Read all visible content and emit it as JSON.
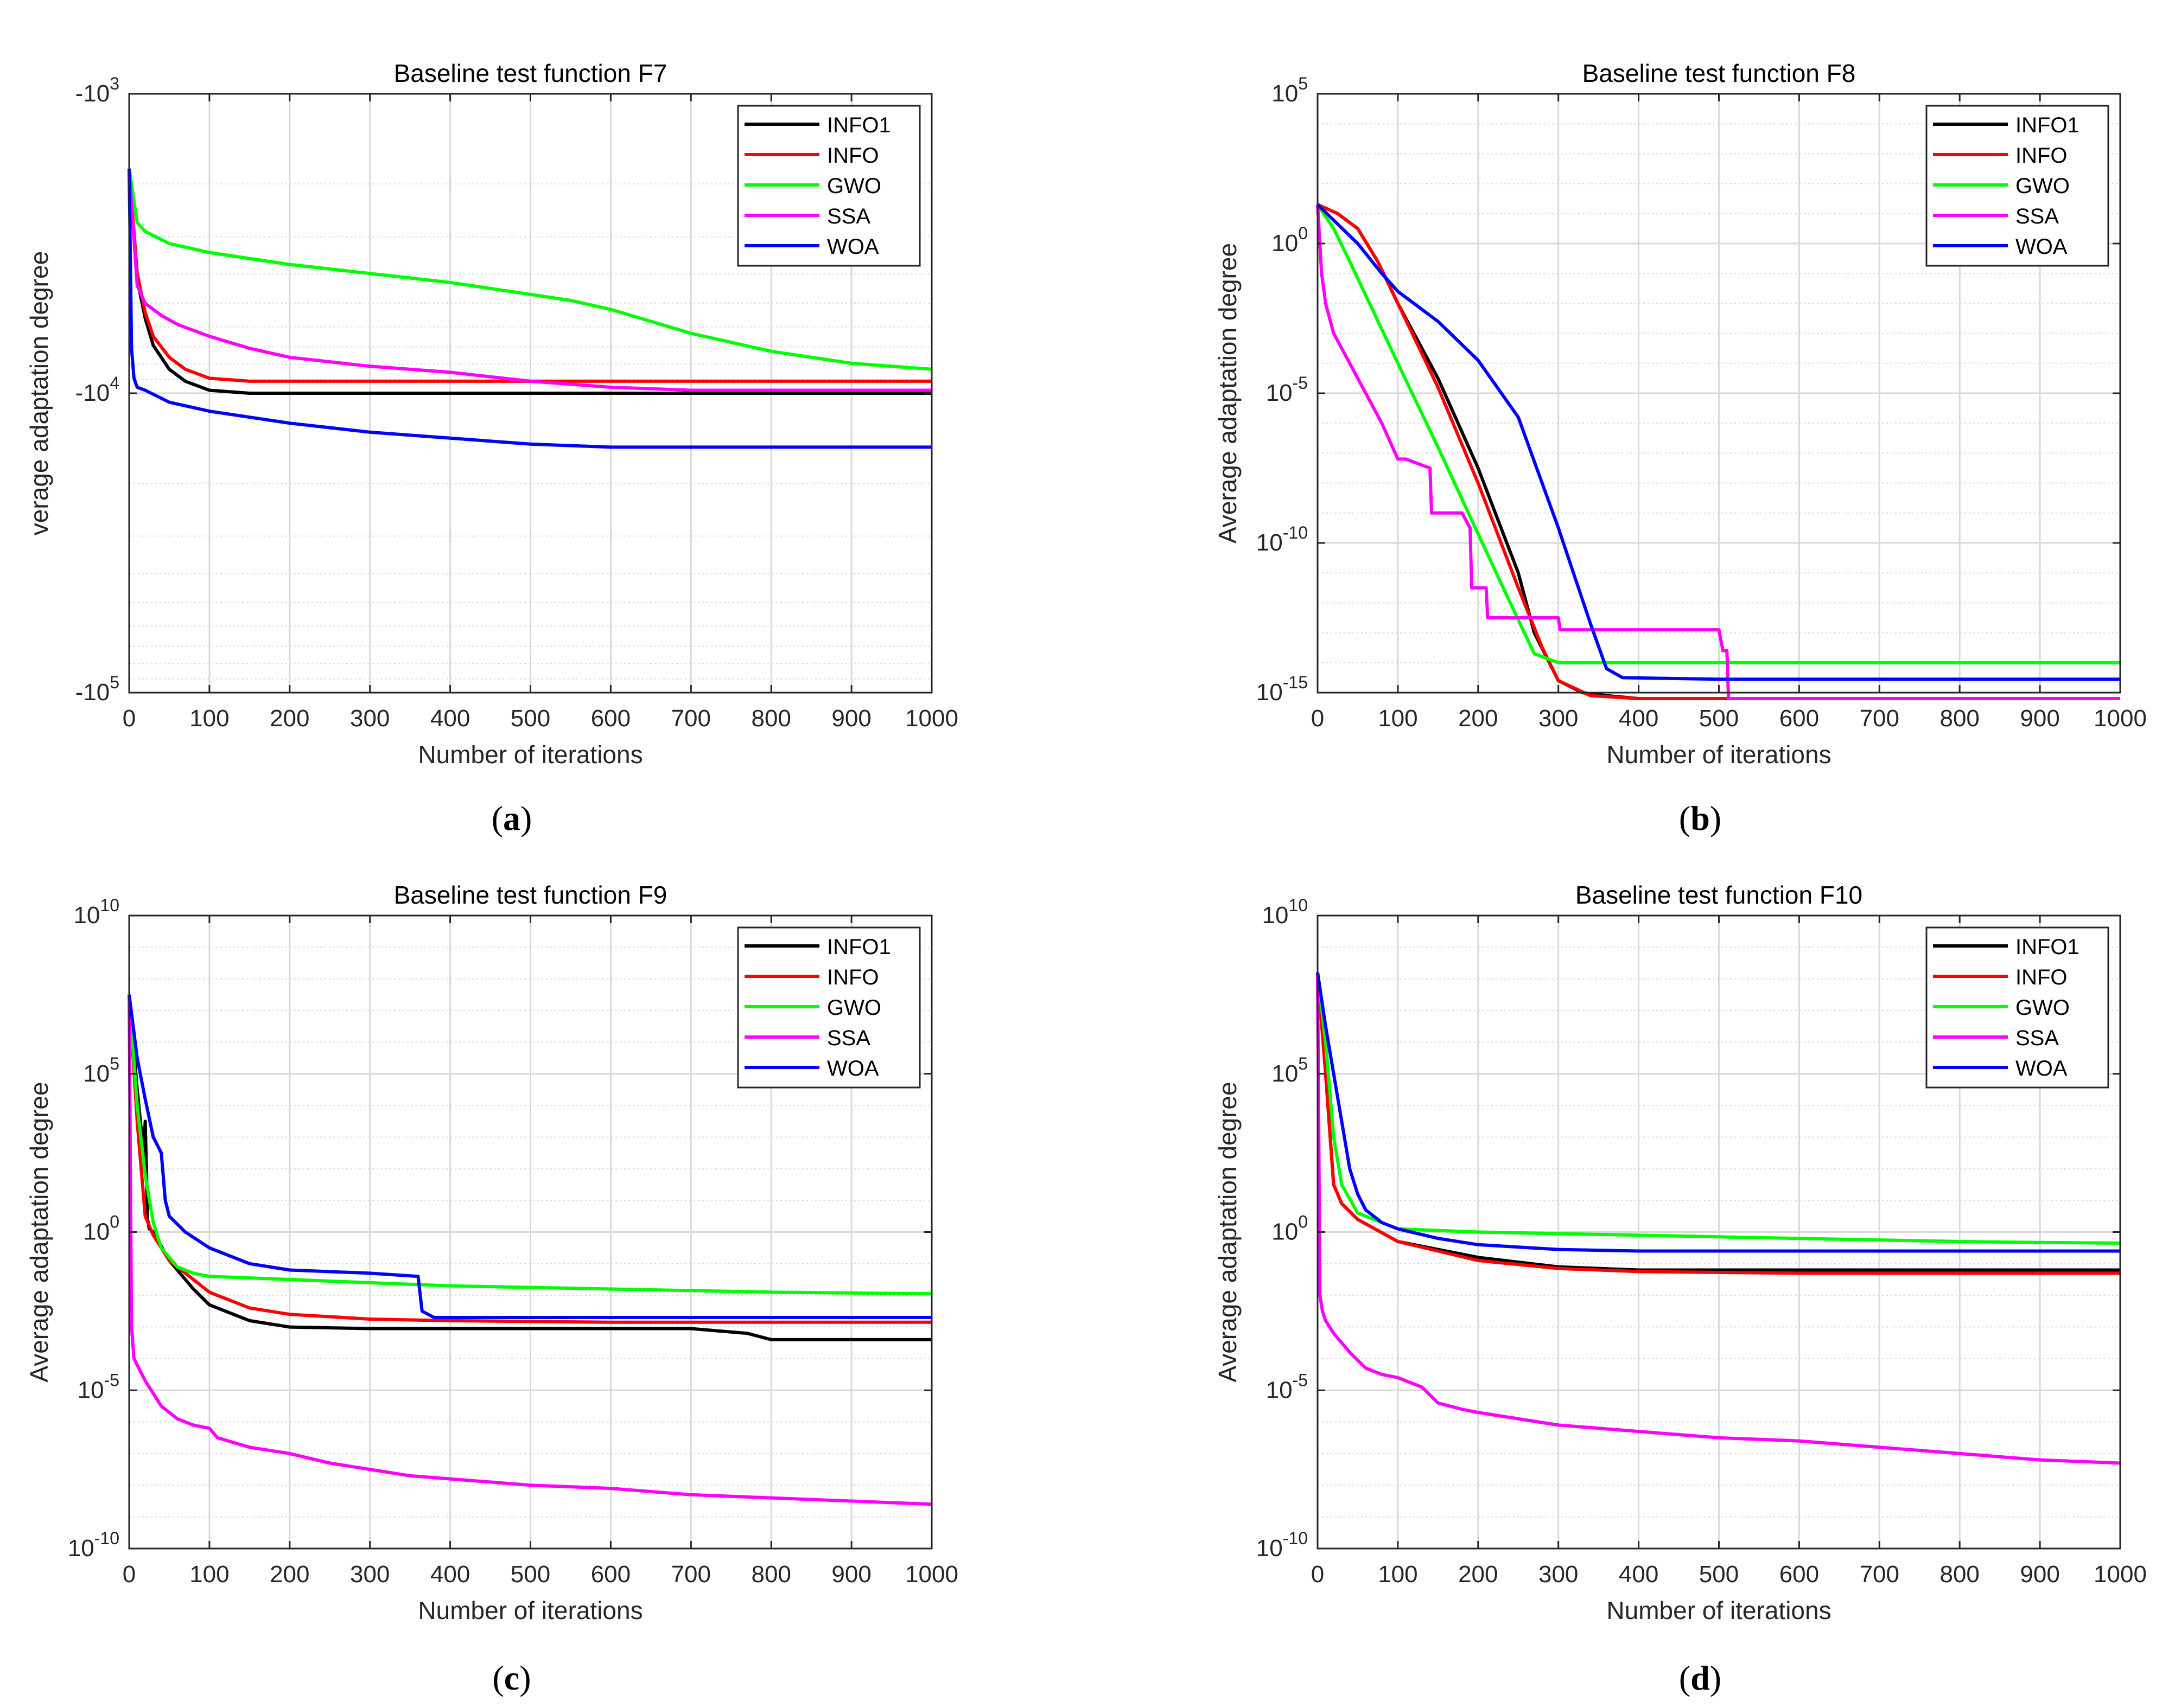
{
  "colors": {
    "INFO1": "#000000",
    "INFO": "#ff0000",
    "GWO": "#00ff00",
    "SSA": "#ff00ff",
    "WOA": "#0000ff",
    "grid": "#d9d9d9",
    "axis": "#262626"
  },
  "chart_data": [
    {
      "type": "line",
      "panel": "a",
      "caption": "(a)",
      "title": "Baseline test function F7",
      "xlabel": "Number of iterations",
      "ylabel": "verage adaptation degree",
      "yscale": "log-negative",
      "xlim": [
        0,
        1000
      ],
      "ylim": [
        -1000,
        -100000
      ],
      "xticks": [
        0,
        100,
        200,
        300,
        400,
        500,
        600,
        700,
        800,
        900,
        1000
      ],
      "xtick_labels": [
        "0",
        "100",
        "200",
        "300",
        "400",
        "500",
        "600",
        "700",
        "800",
        "900",
        "1000"
      ],
      "yticks": [
        3,
        4,
        5
      ],
      "ytick_labels": [
        {
          "base": "-10",
          "exp": "3"
        },
        {
          "base": "-10",
          "exp": "4"
        },
        {
          "base": "-10",
          "exp": "5"
        }
      ],
      "legend_position": "top-right",
      "series": [
        {
          "name": "INFO1",
          "x": [
            0,
            10,
            20,
            30,
            50,
            70,
            100,
            150,
            200,
            300,
            500,
            700,
            1000
          ],
          "y": [
            3.25,
            3.62,
            3.75,
            3.84,
            3.92,
            3.96,
            3.99,
            4.0,
            4.0,
            4.0,
            4.0,
            4.0,
            4.0
          ]
        },
        {
          "name": "INFO",
          "x": [
            0,
            10,
            20,
            30,
            50,
            70,
            100,
            150,
            200,
            300,
            500,
            700,
            1000
          ],
          "y": [
            3.25,
            3.6,
            3.73,
            3.81,
            3.88,
            3.92,
            3.95,
            3.96,
            3.96,
            3.96,
            3.96,
            3.96,
            3.96
          ]
        },
        {
          "name": "GWO",
          "x": [
            0,
            10,
            20,
            50,
            100,
            200,
            300,
            400,
            500,
            550,
            600,
            700,
            800,
            900,
            1000
          ],
          "y": [
            3.25,
            3.43,
            3.46,
            3.5,
            3.53,
            3.57,
            3.6,
            3.63,
            3.67,
            3.69,
            3.72,
            3.8,
            3.86,
            3.9,
            3.92
          ]
        },
        {
          "name": "SSA",
          "x": [
            0,
            10,
            20,
            40,
            60,
            100,
            150,
            200,
            300,
            400,
            500,
            600,
            700,
            800,
            900,
            1000
          ],
          "y": [
            3.25,
            3.64,
            3.7,
            3.74,
            3.77,
            3.81,
            3.85,
            3.88,
            3.91,
            3.93,
            3.96,
            3.98,
            3.99,
            3.99,
            3.99,
            3.99
          ]
        },
        {
          "name": "WOA",
          "x": [
            0,
            3,
            6,
            10,
            20,
            50,
            100,
            200,
            300,
            400,
            500,
            600,
            700,
            800,
            900,
            1000
          ],
          "y": [
            3.25,
            3.85,
            3.95,
            3.98,
            3.99,
            4.03,
            4.06,
            4.1,
            4.13,
            4.15,
            4.17,
            4.18,
            4.18,
            4.18,
            4.18,
            4.18
          ]
        }
      ]
    },
    {
      "type": "line",
      "panel": "b",
      "caption": "(b)",
      "title": "Baseline test function F8",
      "xlabel": "Number of iterations",
      "ylabel": "Average adaptation degree",
      "yscale": "log",
      "xlim": [
        0,
        1000
      ],
      "ylim": [
        1e-15,
        100000.0
      ],
      "xticks": [
        0,
        100,
        200,
        300,
        400,
        500,
        600,
        700,
        800,
        900,
        1000
      ],
      "xtick_labels": [
        "0",
        "100",
        "200",
        "300",
        "400",
        "500",
        "600",
        "700",
        "800",
        "900",
        "1000"
      ],
      "yticks": [
        5,
        0,
        -5,
        -10,
        -15
      ],
      "ytick_labels": [
        {
          "base": "10",
          "exp": "5"
        },
        {
          "base": "10",
          "exp": "0"
        },
        {
          "base": "10",
          "exp": "-5"
        },
        {
          "base": "10",
          "exp": "-10"
        },
        {
          "base": "10",
          "exp": "-15"
        }
      ],
      "legend_position": "top-right",
      "series": [
        {
          "name": "INFO1",
          "x": [
            0,
            25,
            50,
            75,
            100,
            150,
            200,
            250,
            270,
            300,
            330,
            360,
            400,
            500,
            700,
            1000
          ],
          "y": [
            1.3,
            1.0,
            0.5,
            -0.6,
            -2,
            -4.5,
            -7.5,
            -11,
            -13,
            -14.6,
            -15,
            -15.1,
            -15.2,
            -15.2,
            -15.2,
            -15.2
          ]
        },
        {
          "name": "INFO",
          "x": [
            0,
            25,
            50,
            75,
            100,
            150,
            200,
            250,
            280,
            300,
            340,
            400,
            500,
            700,
            1000
          ],
          "y": [
            1.3,
            1.0,
            0.5,
            -0.6,
            -2,
            -4.8,
            -8,
            -11.5,
            -13.5,
            -14.6,
            -15.1,
            -15.2,
            -15.2,
            -15.2,
            -15.2
          ]
        },
        {
          "name": "GWO",
          "x": [
            0,
            20,
            40,
            100,
            150,
            200,
            240,
            270,
            300,
            400,
            600,
            800,
            1000
          ],
          "y": [
            1.3,
            0.5,
            -0.6,
            -4,
            -6.8,
            -9.7,
            -12,
            -13.7,
            -14.0,
            -14.0,
            -14.0,
            -14.0,
            -14.0
          ]
        },
        {
          "name": "SSA",
          "x": [
            0,
            5,
            10,
            20,
            40,
            60,
            80,
            100,
            110,
            140,
            142,
            180,
            190,
            192,
            210,
            212,
            260,
            300,
            302,
            400,
            500,
            505,
            510,
            512,
            700,
            1000
          ],
          "y": [
            1.3,
            -1,
            -2,
            -3,
            -4,
            -5,
            -6,
            -7.2,
            -7.2,
            -7.5,
            -9,
            -9,
            -9.5,
            -11.5,
            -11.5,
            -12.5,
            -12.5,
            -12.5,
            -12.9,
            -12.9,
            -12.9,
            -13.6,
            -13.6,
            -15.2,
            -15.2,
            -15.2
          ]
        },
        {
          "name": "WOA",
          "x": [
            0,
            50,
            80,
            100,
            150,
            200,
            250,
            300,
            340,
            360,
            380,
            500,
            700,
            1000
          ],
          "y": [
            1.3,
            0,
            -1,
            -1.6,
            -2.6,
            -3.9,
            -5.8,
            -9.5,
            -12.7,
            -14.2,
            -14.5,
            -14.55,
            -14.55,
            -14.55
          ]
        }
      ]
    },
    {
      "type": "line",
      "panel": "c",
      "caption": "(c)",
      "title": "Baseline test function F9",
      "xlabel": "Number of iterations",
      "ylabel": "Average adaptation degree",
      "yscale": "log",
      "xlim": [
        0,
        1000
      ],
      "ylim": [
        1e-10,
        10000000000.0
      ],
      "xticks": [
        0,
        100,
        200,
        300,
        400,
        500,
        600,
        700,
        800,
        900,
        1000
      ],
      "xtick_labels": [
        "0",
        "100",
        "200",
        "300",
        "400",
        "500",
        "600",
        "700",
        "800",
        "900",
        "1000"
      ],
      "yticks": [
        10,
        5,
        0,
        -5,
        -10
      ],
      "ytick_labels": [
        {
          "base": "10",
          "exp": "10"
        },
        {
          "base": "10",
          "exp": "5"
        },
        {
          "base": "10",
          "exp": "0"
        },
        {
          "base": "10",
          "exp": "-5"
        },
        {
          "base": "10",
          "exp": "-10"
        }
      ],
      "legend_position": "top-right",
      "series": [
        {
          "name": "INFO1",
          "x": [
            0,
            10,
            18,
            20,
            23,
            25,
            30,
            50,
            80,
            100,
            150,
            200,
            300,
            400,
            700,
            770,
            800,
            1000
          ],
          "y": [
            7.5,
            4.5,
            2.5,
            3.5,
            0.4,
            0.1,
            0,
            -0.9,
            -1.8,
            -2.3,
            -2.8,
            -3.0,
            -3.05,
            -3.05,
            -3.05,
            -3.2,
            -3.4,
            -3.4
          ]
        },
        {
          "name": "INFO",
          "x": [
            0,
            10,
            20,
            30,
            50,
            80,
            100,
            150,
            200,
            300,
            400,
            600,
            800,
            1000
          ],
          "y": [
            7.5,
            3.5,
            0.5,
            -0.1,
            -0.9,
            -1.5,
            -1.9,
            -2.4,
            -2.6,
            -2.75,
            -2.8,
            -2.85,
            -2.85,
            -2.85
          ]
        },
        {
          "name": "GWO",
          "x": [
            0,
            10,
            20,
            30,
            40,
            60,
            80,
            100,
            200,
            300,
            400,
            500,
            600,
            700,
            800,
            1000
          ],
          "y": [
            7.5,
            4,
            1.8,
            0.3,
            -0.5,
            -1.1,
            -1.3,
            -1.4,
            -1.5,
            -1.6,
            -1.7,
            -1.75,
            -1.8,
            -1.85,
            -1.9,
            -1.95
          ]
        },
        {
          "name": "SSA",
          "x": [
            0,
            3,
            6,
            10,
            20,
            40,
            60,
            80,
            100,
            110,
            150,
            200,
            250,
            300,
            350,
            400,
            500,
            600,
            700,
            800,
            900,
            1000
          ],
          "y": [
            7.5,
            -3,
            -4,
            -4.2,
            -4.7,
            -5.5,
            -5.9,
            -6.1,
            -6.2,
            -6.5,
            -6.8,
            -7.0,
            -7.3,
            -7.5,
            -7.7,
            -7.8,
            -8.0,
            -8.1,
            -8.3,
            -8.4,
            -8.5,
            -8.6
          ]
        },
        {
          "name": "WOA",
          "x": [
            0,
            10,
            20,
            30,
            40,
            45,
            50,
            70,
            100,
            150,
            200,
            300,
            360,
            365,
            380,
            500,
            700,
            1000
          ],
          "y": [
            7.5,
            5.5,
            4.2,
            3,
            2.5,
            1.0,
            0.5,
            0,
            -0.5,
            -1,
            -1.2,
            -1.3,
            -1.4,
            -2.5,
            -2.7,
            -2.7,
            -2.7,
            -2.7
          ]
        }
      ]
    },
    {
      "type": "line",
      "panel": "d",
      "caption": "(d)",
      "title": "Baseline test function F10",
      "xlabel": "Number of iterations",
      "ylabel": "Average adaptation degree",
      "yscale": "log",
      "xlim": [
        0,
        1000
      ],
      "ylim": [
        1e-10,
        10000000000.0
      ],
      "xticks": [
        0,
        100,
        200,
        300,
        400,
        500,
        600,
        700,
        800,
        900,
        1000
      ],
      "xtick_labels": [
        "0",
        "100",
        "200",
        "300",
        "400",
        "500",
        "600",
        "700",
        "800",
        "900",
        "1000"
      ],
      "yticks": [
        10,
        5,
        0,
        -5,
        -10
      ],
      "ytick_labels": [
        {
          "base": "10",
          "exp": "10"
        },
        {
          "base": "10",
          "exp": "5"
        },
        {
          "base": "10",
          "exp": "0"
        },
        {
          "base": "10",
          "exp": "-5"
        },
        {
          "base": "10",
          "exp": "-10"
        }
      ],
      "legend_position": "top-right",
      "series": [
        {
          "name": "INFO1",
          "x": [
            0,
            10,
            20,
            30,
            50,
            100,
            200,
            300,
            400,
            600,
            800,
            1000
          ],
          "y": [
            8.2,
            5,
            1.5,
            0.9,
            0.4,
            -0.3,
            -0.8,
            -1.1,
            -1.2,
            -1.2,
            -1.2,
            -1.2
          ]
        },
        {
          "name": "INFO",
          "x": [
            0,
            10,
            20,
            30,
            50,
            100,
            200,
            300,
            400,
            600,
            800,
            1000
          ],
          "y": [
            8.2,
            5,
            1.5,
            0.9,
            0.4,
            -0.3,
            -0.9,
            -1.15,
            -1.25,
            -1.3,
            -1.3,
            -1.3
          ]
        },
        {
          "name": "GWO",
          "x": [
            0,
            10,
            20,
            30,
            50,
            100,
            200,
            300,
            400,
            500,
            600,
            700,
            800,
            900,
            1000
          ],
          "y": [
            8.2,
            6,
            3,
            1.5,
            0.6,
            0.1,
            0.0,
            -0.05,
            -0.1,
            -0.15,
            -0.2,
            -0.25,
            -0.3,
            -0.33,
            -0.35
          ]
        },
        {
          "name": "SSA",
          "x": [
            0,
            3,
            6,
            10,
            20,
            40,
            60,
            80,
            100,
            130,
            150,
            180,
            200,
            300,
            400,
            500,
            600,
            700,
            800,
            900,
            1000
          ],
          "y": [
            8.2,
            -2,
            -2.5,
            -2.8,
            -3.2,
            -3.8,
            -4.3,
            -4.5,
            -4.6,
            -4.9,
            -5.4,
            -5.6,
            -5.7,
            -6.1,
            -6.3,
            -6.5,
            -6.6,
            -6.8,
            -7.0,
            -7.2,
            -7.3
          ]
        },
        {
          "name": "WOA",
          "x": [
            0,
            10,
            20,
            30,
            40,
            50,
            60,
            80,
            100,
            150,
            200,
            300,
            400,
            600,
            800,
            1000
          ],
          "y": [
            8.2,
            6.5,
            5,
            3.5,
            2.0,
            1.2,
            0.7,
            0.3,
            0.1,
            -0.2,
            -0.4,
            -0.55,
            -0.6,
            -0.6,
            -0.6,
            -0.6
          ]
        }
      ]
    }
  ]
}
